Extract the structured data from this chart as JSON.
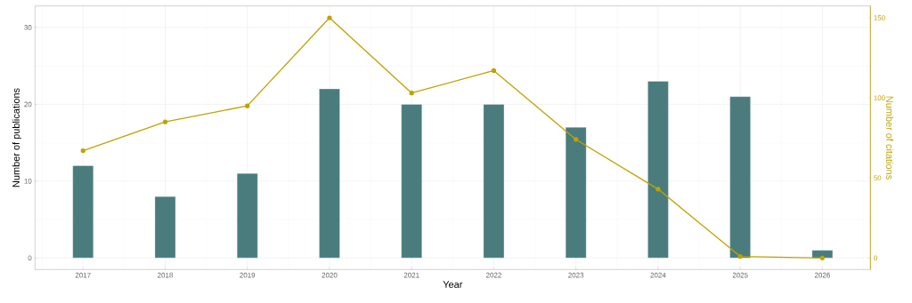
{
  "chart_data": {
    "type": "bar",
    "xlabel": "Year",
    "ylabel": "Number of publications",
    "y2label": "Number of citations",
    "categories": [
      "2017",
      "2018",
      "2019",
      "2020",
      "2021",
      "2022",
      "2023",
      "2024",
      "2025",
      "2026"
    ],
    "series": [
      {
        "color": "#4a7c7e",
        "values": [
          12,
          8,
          11,
          22,
          20,
          20,
          17,
          23,
          21,
          1
        ]
      },
      {
        "type": "line",
        "axis": "y2",
        "color": "#bfa200",
        "values": [
          67,
          85,
          95,
          150,
          103,
          117,
          74,
          43,
          1,
          0
        ]
      }
    ],
    "ylim": [
      -1.5,
      32.8
    ],
    "yticks": [
      0,
      10,
      20,
      30
    ],
    "y2lim": [
      -7.2,
      157.4
    ],
    "y2ticks": [
      0,
      50,
      100,
      150
    ],
    "grid": true,
    "marker": "circle",
    "line_style": "solid"
  }
}
